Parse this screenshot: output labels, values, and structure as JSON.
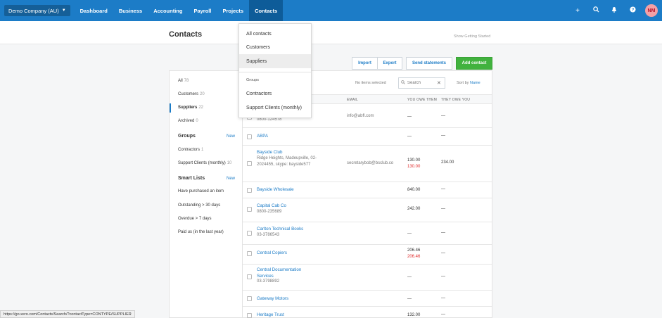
{
  "nav": {
    "org": "Demo Company (AU)",
    "items": [
      "Dashboard",
      "Business",
      "Accounting",
      "Payroll",
      "Projects",
      "Contacts"
    ],
    "avatar": "NM",
    "icons": [
      "plus-icon",
      "search-icon",
      "bell-icon",
      "help-icon"
    ]
  },
  "header": {
    "title": "Contacts",
    "show_started": "Show Getting Started"
  },
  "toolbar": {
    "import": "Import",
    "export": "Export",
    "send_statements": "Send statements",
    "add_contact": "Add contact"
  },
  "sidebar": {
    "all": {
      "label": "All",
      "count": "78"
    },
    "customers": {
      "label": "Customers",
      "count": "20"
    },
    "suppliers": {
      "label": "Suppliers",
      "count": "22"
    },
    "archived": {
      "label": "Archived",
      "count": "0"
    },
    "groups_heading": "Groups",
    "new": "New",
    "contractors": {
      "label": "Contractors",
      "count": "1"
    },
    "support": {
      "label": "Support Clients (monthly)",
      "count": "10"
    },
    "smart_heading": "Smart Lists",
    "smart": [
      "Have purchased an item",
      "Outstanding > 30 days",
      "Overdue > 7 days",
      "Paid us (in the last year)"
    ]
  },
  "list": {
    "no_items": "No items selected",
    "search_placeholder": "Search",
    "sort_label": "Sort by",
    "sort_value": "Name",
    "col_email": "EMAIL",
    "col_owe": "YOU OWE THEM",
    "col_they": "THEY OWE YOU",
    "rows": [
      {
        "name": "",
        "detail": "0800-124578",
        "email": "info@abfl.com",
        "owe": "—",
        "owe2": "",
        "they": "—"
      },
      {
        "name": "ABPA",
        "detail": "",
        "email": "",
        "owe": "—",
        "owe2": "",
        "they": "—"
      },
      {
        "name": "Bayside Club",
        "detail": "Ridge Heights, Madeupville, 02-2024455, skype: bayside577",
        "email": "secretarybob@bsclub.co",
        "owe": "130.00",
        "owe2": "130.00",
        "they": "234.00"
      },
      {
        "name": "Bayside Wholesale",
        "detail": "",
        "email": "",
        "owe": "840.00",
        "owe2": "",
        "they": "—"
      },
      {
        "name": "Capital Cab Co",
        "detail": "0800-235689",
        "email": "",
        "owe": "242.00",
        "owe2": "",
        "they": "—"
      },
      {
        "name": "Carlton Technical Books",
        "detail": "03-3786543",
        "email": "",
        "owe": "—",
        "owe2": "",
        "they": "—"
      },
      {
        "name": "Central Copiers",
        "detail": "",
        "email": "",
        "owe": "206.46",
        "owe2": "206.46",
        "they": "—"
      },
      {
        "name": "Central Documentation Services",
        "detail": "03-3798892",
        "email": "",
        "owe": "—",
        "owe2": "",
        "they": "—"
      },
      {
        "name": "Gateway Motors",
        "detail": "",
        "email": "",
        "owe": "—",
        "owe2": "",
        "they": "—"
      },
      {
        "name": "Heritage Trust",
        "detail": "",
        "email": "",
        "owe": "132.00",
        "owe2": "",
        "they": "—"
      }
    ]
  },
  "dropdown": {
    "all": "All contacts",
    "customers": "Customers",
    "suppliers": "Suppliers",
    "groups": "Groups",
    "contractors": "Contractors",
    "support": "Support Clients (monthly)"
  },
  "status_url": "https://go.xero.com/Contacts/Search/?contactType=CONTYPE/SUPPLIER",
  "colors": {
    "nav": "#1c7cc7",
    "accent_green": "#41b23e",
    "overdue_red": "#e02c2c"
  }
}
